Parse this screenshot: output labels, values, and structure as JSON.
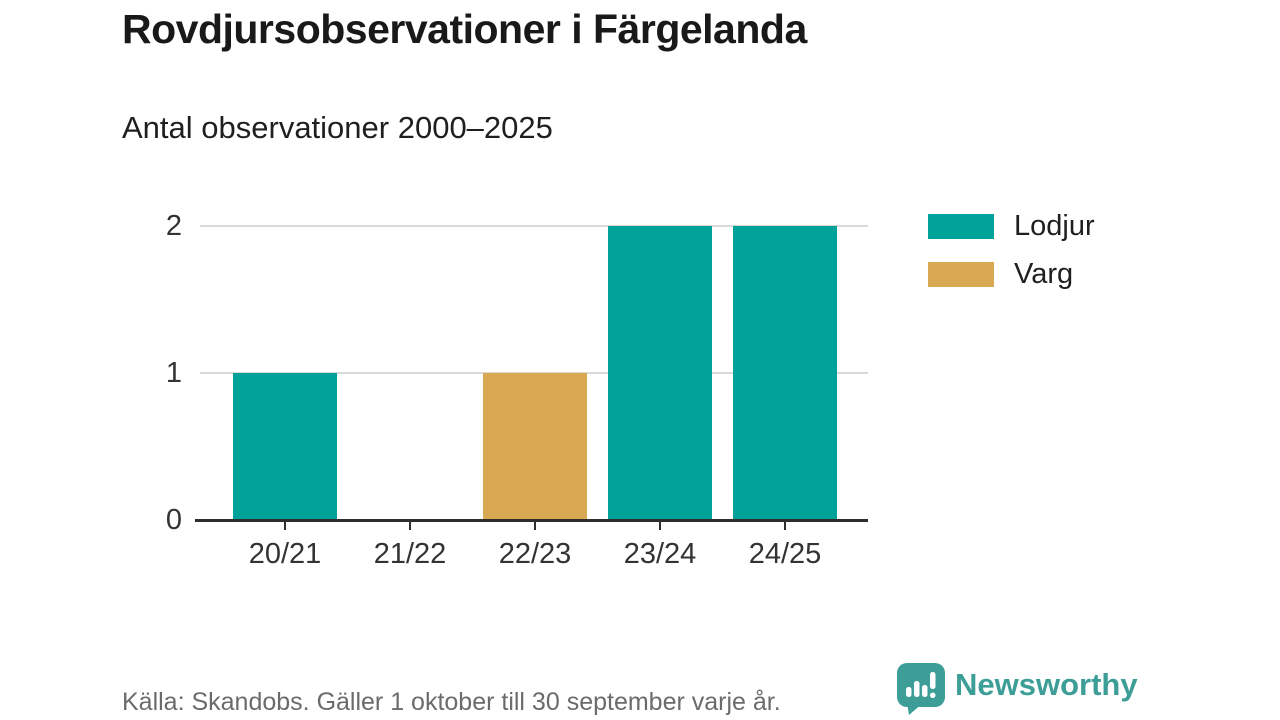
{
  "title": "Rovdjursobservationer i Färgelanda",
  "subtitle": "Antal observationer 2000–2025",
  "footer": {
    "source": "Källa: Skandobs. Gäller 1 oktober till 30 september varje år.",
    "brand": "Newsworthy"
  },
  "colors": {
    "lodjur": "#00a29a",
    "varg": "#d9a853",
    "brand": "#3c9e96",
    "grid": "#d9d9d9",
    "axis": "#2e2e2e",
    "title_text": "#191919",
    "muted_text": "#6b6b6b"
  },
  "legend": [
    {
      "label": "Lodjur",
      "color": "#00a29a"
    },
    {
      "label": "Varg",
      "color": "#d9a853"
    }
  ],
  "chart_data": {
    "type": "bar",
    "title": "Rovdjursobservationer i Färgelanda",
    "subtitle": "Antal observationer 2000–2025",
    "categories": [
      "20/21",
      "21/22",
      "22/23",
      "23/24",
      "24/25"
    ],
    "series": [
      {
        "name": "Lodjur",
        "color": "#00a29a",
        "values": [
          1,
          0,
          0,
          2,
          2
        ]
      },
      {
        "name": "Varg",
        "color": "#d9a853",
        "values": [
          0,
          0,
          1,
          0,
          0
        ]
      }
    ],
    "xlabel": "",
    "ylabel": "",
    "yticks": [
      0,
      1,
      2
    ],
    "ylim": [
      0,
      2
    ],
    "grid": "horizontal",
    "legend_position": "right",
    "source": "Källa: Skandobs. Gäller 1 oktober till 30 september varje år."
  }
}
